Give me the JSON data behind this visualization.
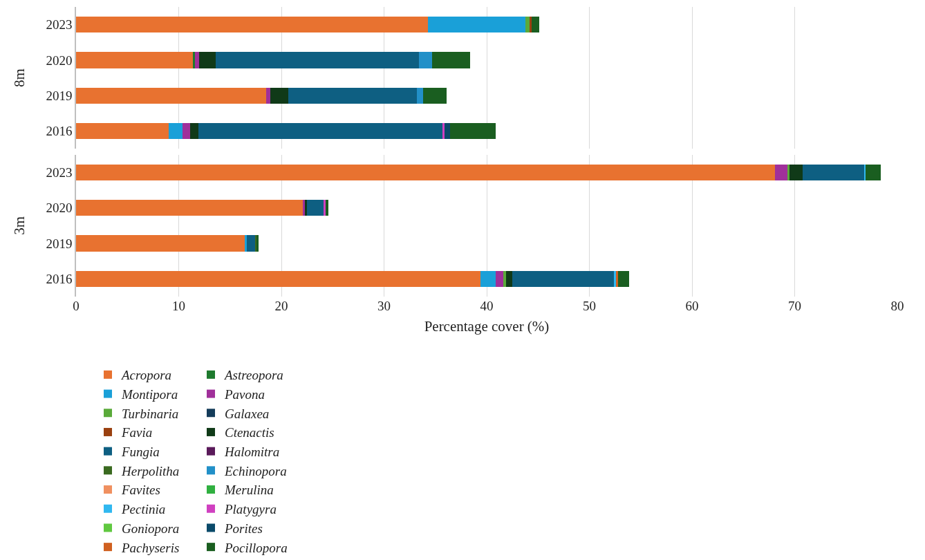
{
  "chart_data": [
    {
      "type": "bar",
      "orientation": "horizontal",
      "stacked": true,
      "ylabel": "8m",
      "categories": [
        "2023",
        "2020",
        "2019",
        "2016"
      ],
      "xlim": [
        0,
        80
      ],
      "xticks": [
        0,
        10,
        20,
        30,
        40,
        50,
        60,
        70,
        80
      ],
      "grid": "x",
      "tick_labels": "y",
      "legend": "bottom",
      "series": [
        {
          "name": "Acropora",
          "color": "#e87230",
          "values": [
            34.3,
            11.4,
            18.5,
            9.0
          ]
        },
        {
          "name": "Astreopora",
          "color": "#1e7a2e",
          "values": [
            null,
            0.2,
            null,
            null
          ]
        },
        {
          "name": "Montipora",
          "color": "#1aa0d8",
          "values": [
            9.5,
            null,
            null,
            1.4
          ]
        },
        {
          "name": "Pavona",
          "color": "#a0309a",
          "values": [
            null,
            0.4,
            0.4,
            0.7
          ]
        },
        {
          "name": "Turbinaria",
          "color": "#5aaa3a",
          "values": [
            0.4,
            null,
            null,
            null
          ]
        },
        {
          "name": "Galaxea",
          "color": "#143c5a",
          "values": [
            null,
            null,
            null,
            null
          ]
        },
        {
          "name": "Favia",
          "color": "#9a4010",
          "values": [
            0.2,
            null,
            null,
            null
          ]
        },
        {
          "name": "Ctenactis",
          "color": "#103a18",
          "values": [
            null,
            1.6,
            1.8,
            0.8
          ]
        },
        {
          "name": "Fungia",
          "color": "#0e5f82",
          "values": [
            null,
            19.8,
            12.5,
            23.8
          ]
        },
        {
          "name": "Halomitra",
          "color": "#5a1a5a",
          "values": [
            null,
            null,
            null,
            null
          ]
        },
        {
          "name": "Herpolitha",
          "color": "#3a6a20",
          "values": [
            null,
            null,
            null,
            null
          ]
        },
        {
          "name": "Echinopora",
          "color": "#2290c8",
          "values": [
            null,
            1.3,
            0.6,
            null
          ]
        },
        {
          "name": "Favites",
          "color": "#f09060",
          "values": [
            null,
            null,
            null,
            null
          ]
        },
        {
          "name": "Merulina",
          "color": "#30b040",
          "values": [
            null,
            null,
            null,
            null
          ]
        },
        {
          "name": "Pectinia",
          "color": "#30b8f0",
          "values": [
            null,
            null,
            null,
            null
          ]
        },
        {
          "name": "Platygyra",
          "color": "#d040c0",
          "values": [
            null,
            null,
            null,
            0.2
          ]
        },
        {
          "name": "Goniopora",
          "color": "#60c840",
          "values": [
            null,
            null,
            null,
            null
          ]
        },
        {
          "name": "Porites",
          "color": "#0a4a6a",
          "values": [
            null,
            null,
            null,
            0.5
          ]
        },
        {
          "name": "Pachyseris",
          "color": "#d06020",
          "values": [
            null,
            null,
            null,
            null
          ]
        },
        {
          "name": "Pocillopora",
          "color": "#1a5e20",
          "values": [
            0.7,
            3.7,
            2.3,
            4.5
          ]
        }
      ]
    },
    {
      "type": "bar",
      "orientation": "horizontal",
      "stacked": true,
      "ylabel": "3m",
      "xlabel": "Percentage cover (%)",
      "categories": [
        "2023",
        "2020",
        "2019",
        "2016"
      ],
      "xlim": [
        0,
        80
      ],
      "xticks": [
        0,
        10,
        20,
        30,
        40,
        50,
        60,
        70,
        80
      ],
      "grid": "x",
      "series": [
        {
          "color": "#e87230",
          "values": [
            68.1,
            22.1,
            16.4,
            39.4
          ]
        },
        {
          "color": "#1aa0d8",
          "values": [
            null,
            null,
            0.2,
            1.5
          ]
        },
        {
          "color": "#a0309a",
          "values": [
            1.2,
            0.2,
            null,
            0.7
          ]
        },
        {
          "color": "#5aaa3a",
          "values": [
            0.2,
            null,
            null,
            0.3
          ]
        },
        {
          "color": "#103a18",
          "values": [
            1.3,
            0.2,
            null,
            0.6
          ]
        },
        {
          "color": "#0e5f82",
          "values": [
            6.0,
            1.6,
            0.9,
            9.9
          ]
        },
        {
          "color": "#3a6a20",
          "values": [
            null,
            null,
            0.1,
            null
          ]
        },
        {
          "color": "#30b8f0",
          "values": [
            0.1,
            null,
            null,
            0.2
          ]
        },
        {
          "color": "#d040c0",
          "values": [
            null,
            0.2,
            null,
            null
          ]
        },
        {
          "color": "#d06020",
          "values": [
            null,
            null,
            null,
            0.2
          ]
        },
        {
          "color": "#1a5e20",
          "values": [
            1.5,
            0.3,
            0.2,
            1.1
          ]
        }
      ]
    }
  ]
}
